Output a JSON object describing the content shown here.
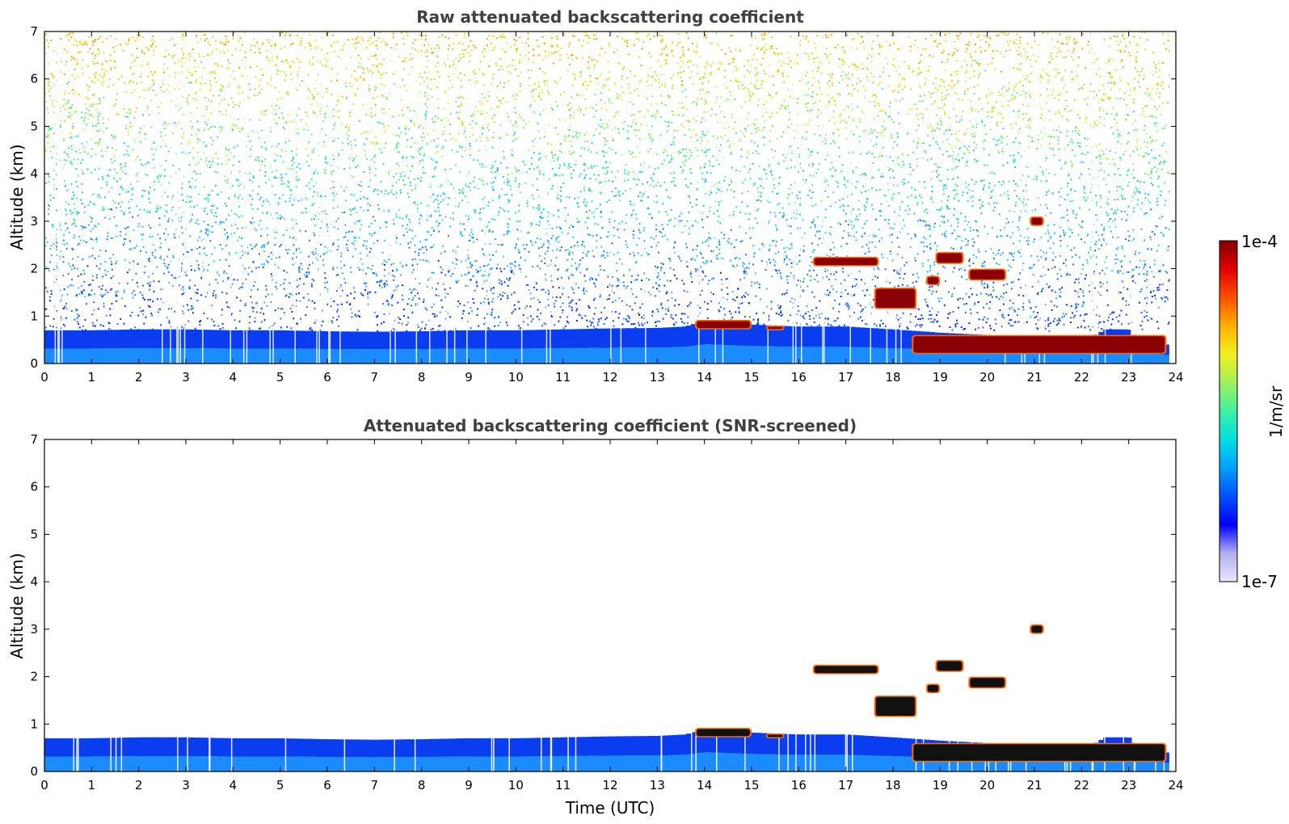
{
  "chart_data": [
    {
      "type": "heatmap",
      "title": "Raw attenuated backscattering coefficient",
      "xlabel": "",
      "ylabel": "Altitude (km)",
      "xlim": [
        0,
        24
      ],
      "ylim": [
        0,
        7
      ],
      "xticks": [
        "0",
        "1",
        "2",
        "3",
        "4",
        "5",
        "6",
        "7",
        "8",
        "9",
        "10",
        "11",
        "12",
        "13",
        "14",
        "15",
        "16",
        "17",
        "18",
        "19",
        "20",
        "21",
        "22",
        "23",
        "24"
      ],
      "yticks": [
        "0",
        "1",
        "2",
        "3",
        "4",
        "5",
        "6",
        "7"
      ],
      "noise_field": true,
      "boundary_layer": [
        [
          0,
          0.7
        ],
        [
          1,
          0.7
        ],
        [
          2,
          0.72
        ],
        [
          3,
          0.72
        ],
        [
          4,
          0.7
        ],
        [
          5,
          0.7
        ],
        [
          6,
          0.68
        ],
        [
          7,
          0.67
        ],
        [
          8,
          0.68
        ],
        [
          9,
          0.7
        ],
        [
          10,
          0.7
        ],
        [
          11,
          0.72
        ],
        [
          12,
          0.74
        ],
        [
          13,
          0.75
        ],
        [
          13.6,
          0.78
        ],
        [
          14,
          0.9
        ],
        [
          15,
          0.82
        ],
        [
          16,
          0.78
        ],
        [
          17,
          0.78
        ],
        [
          18,
          0.72
        ],
        [
          19,
          0.65
        ],
        [
          20,
          0.6
        ],
        [
          21,
          0.55
        ],
        [
          22,
          0.45
        ],
        [
          22.3,
          0.6
        ],
        [
          22.5,
          0.72
        ],
        [
          23,
          0.72
        ],
        [
          23.2,
          0.5
        ],
        [
          23.8,
          0.4
        ]
      ],
      "clouds": [
        {
          "x0": 16.3,
          "x1": 17.7,
          "y0": 2.05,
          "y1": 2.25
        },
        {
          "x0": 17.6,
          "x1": 18.5,
          "y0": 1.15,
          "y1": 1.6
        },
        {
          "x0": 18.7,
          "x1": 19.0,
          "y0": 1.65,
          "y1": 1.85
        },
        {
          "x0": 18.9,
          "x1": 19.5,
          "y0": 2.1,
          "y1": 2.35
        },
        {
          "x0": 19.6,
          "x1": 20.4,
          "y0": 1.75,
          "y1": 2.0
        },
        {
          "x0": 20.9,
          "x1": 21.2,
          "y0": 2.9,
          "y1": 3.1
        },
        {
          "x0": 13.8,
          "x1": 15.0,
          "y0": 0.72,
          "y1": 0.92
        },
        {
          "x0": 15.3,
          "x1": 15.7,
          "y0": 0.7,
          "y1": 0.8
        },
        {
          "x0": 18.4,
          "x1": 23.8,
          "y0": 0.2,
          "y1": 0.6
        }
      ]
    },
    {
      "type": "heatmap",
      "title": "Attenuated backscattering coefficient (SNR-screened)",
      "xlabel": "Time (UTC)",
      "ylabel": "Altitude (km)",
      "xlim": [
        0,
        24
      ],
      "ylim": [
        0,
        7
      ],
      "xticks": [
        "0",
        "1",
        "2",
        "3",
        "4",
        "5",
        "6",
        "7",
        "8",
        "9",
        "10",
        "11",
        "12",
        "13",
        "14",
        "15",
        "16",
        "17",
        "18",
        "19",
        "20",
        "21",
        "22",
        "23",
        "24"
      ],
      "yticks": [
        "0",
        "1",
        "2",
        "3",
        "4",
        "5",
        "6",
        "7"
      ],
      "noise_field": false,
      "boundary_layer": [
        [
          0,
          0.7
        ],
        [
          1,
          0.7
        ],
        [
          2,
          0.72
        ],
        [
          3,
          0.72
        ],
        [
          4,
          0.7
        ],
        [
          5,
          0.7
        ],
        [
          6,
          0.68
        ],
        [
          7,
          0.67
        ],
        [
          8,
          0.68
        ],
        [
          9,
          0.7
        ],
        [
          10,
          0.7
        ],
        [
          11,
          0.72
        ],
        [
          12,
          0.74
        ],
        [
          13,
          0.75
        ],
        [
          13.6,
          0.78
        ],
        [
          14,
          0.9
        ],
        [
          15,
          0.82
        ],
        [
          16,
          0.78
        ],
        [
          17,
          0.78
        ],
        [
          18,
          0.72
        ],
        [
          19,
          0.65
        ],
        [
          20,
          0.6
        ],
        [
          21,
          0.55
        ],
        [
          22,
          0.45
        ],
        [
          22.3,
          0.6
        ],
        [
          22.5,
          0.72
        ],
        [
          23,
          0.72
        ],
        [
          23.2,
          0.5
        ],
        [
          23.8,
          0.4
        ]
      ],
      "clouds": [
        {
          "x0": 16.3,
          "x1": 17.7,
          "y0": 2.05,
          "y1": 2.25
        },
        {
          "x0": 17.6,
          "x1": 18.5,
          "y0": 1.15,
          "y1": 1.6
        },
        {
          "x0": 18.7,
          "x1": 19.0,
          "y0": 1.65,
          "y1": 1.85
        },
        {
          "x0": 18.9,
          "x1": 19.5,
          "y0": 2.1,
          "y1": 2.35
        },
        {
          "x0": 19.6,
          "x1": 20.4,
          "y0": 1.75,
          "y1": 2.0
        },
        {
          "x0": 20.9,
          "x1": 21.2,
          "y0": 2.9,
          "y1": 3.1
        },
        {
          "x0": 13.8,
          "x1": 15.0,
          "y0": 0.72,
          "y1": 0.92
        },
        {
          "x0": 15.3,
          "x1": 15.7,
          "y0": 0.7,
          "y1": 0.8
        },
        {
          "x0": 18.4,
          "x1": 23.8,
          "y0": 0.2,
          "y1": 0.6
        }
      ]
    }
  ],
  "colorbar": {
    "label": "1/m/sr",
    "max_label": "1e-4",
    "min_label": "1e-7",
    "colormap": "jet",
    "stops": [
      "#e8e8fa",
      "#b0b0f0",
      "#0000ff",
      "#0050ff",
      "#00a0ff",
      "#00e0e0",
      "#40f0a0",
      "#a0f060",
      "#f0f020",
      "#ffb000",
      "#ff5000",
      "#e00000",
      "#800000"
    ]
  }
}
